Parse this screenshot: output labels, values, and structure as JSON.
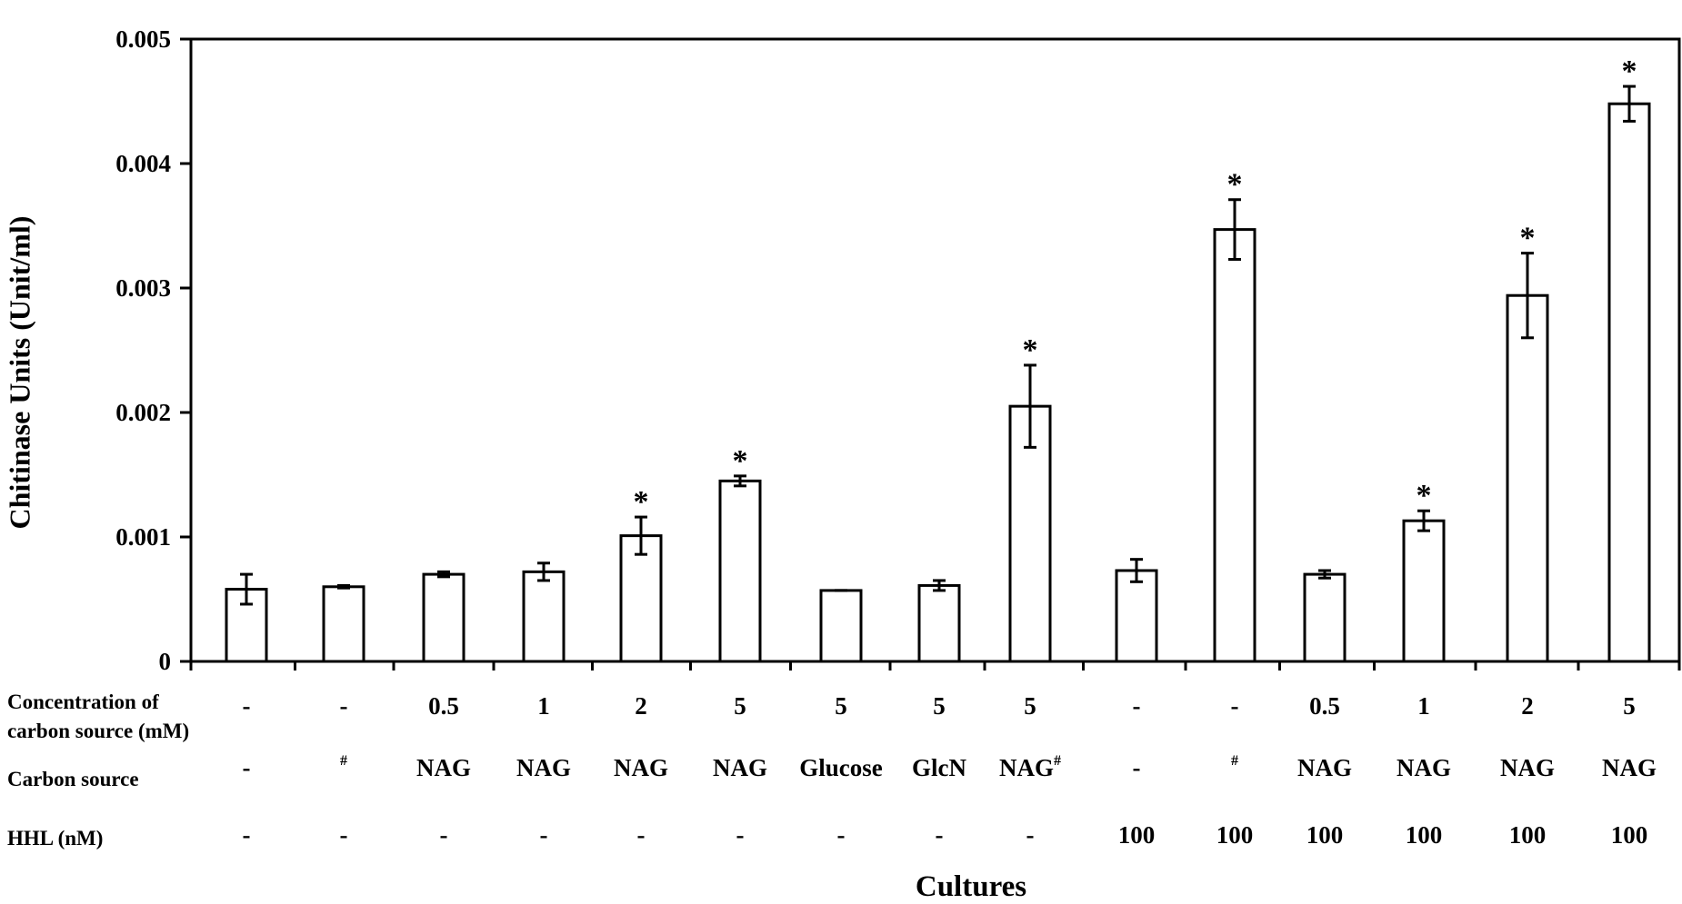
{
  "chart_data": {
    "type": "bar",
    "ylabel": "Chitinase Units (Unit/ml)",
    "xlabel": "Cultures",
    "ylim": [
      0,
      0.005
    ],
    "yticks": [
      "0",
      "0.001",
      "0.002",
      "0.003",
      "0.004",
      "0.005"
    ],
    "grid": false,
    "legend": "none",
    "bar_fill": "#ffffff",
    "bar_stroke": "#000000",
    "values": [
      0.00058,
      0.0006,
      0.0007,
      0.00072,
      0.00101,
      0.00145,
      0.00057,
      0.00061,
      0.00205,
      0.00073,
      0.00347,
      0.0007,
      0.00113,
      0.00294,
      0.00448
    ],
    "errors": [
      0.00012,
      1e-05,
      2e-05,
      7e-05,
      0.00015,
      4e-05,
      0.0,
      4e-05,
      0.00033,
      9e-05,
      0.00024,
      3e-05,
      8e-05,
      0.00034,
      0.00014
    ],
    "significant": [
      "",
      "",
      "",
      "",
      "*",
      "*",
      "",
      "",
      "*",
      "",
      "*",
      "",
      "*",
      "*",
      "*"
    ],
    "table": {
      "rows": [
        {
          "label_lines": [
            "Concentration  of",
            "carbon  source (mM)"
          ],
          "cells": [
            {
              "text": "-",
              "sup": ""
            },
            {
              "text": "-",
              "sup": ""
            },
            {
              "text": "0.5",
              "sup": ""
            },
            {
              "text": "1",
              "sup": ""
            },
            {
              "text": "2",
              "sup": ""
            },
            {
              "text": "5",
              "sup": ""
            },
            {
              "text": "5",
              "sup": ""
            },
            {
              "text": "5",
              "sup": ""
            },
            {
              "text": "5",
              "sup": ""
            },
            {
              "text": "-",
              "sup": ""
            },
            {
              "text": "-",
              "sup": ""
            },
            {
              "text": "0.5",
              "sup": ""
            },
            {
              "text": "1",
              "sup": ""
            },
            {
              "text": "2",
              "sup": ""
            },
            {
              "text": "5",
              "sup": ""
            }
          ]
        },
        {
          "label_lines": [
            "Carbon  source"
          ],
          "cells": [
            {
              "text": "-",
              "sup": ""
            },
            {
              "text": "",
              "sup": "#"
            },
            {
              "text": "NAG",
              "sup": ""
            },
            {
              "text": "NAG",
              "sup": ""
            },
            {
              "text": "NAG",
              "sup": ""
            },
            {
              "text": "NAG",
              "sup": ""
            },
            {
              "text": "Glucose",
              "sup": ""
            },
            {
              "text": "GlcN",
              "sup": ""
            },
            {
              "text": "NAG",
              "sup": "#"
            },
            {
              "text": "-",
              "sup": ""
            },
            {
              "text": "",
              "sup": "#"
            },
            {
              "text": "NAG",
              "sup": ""
            },
            {
              "text": "NAG",
              "sup": ""
            },
            {
              "text": "NAG",
              "sup": ""
            },
            {
              "text": "NAG",
              "sup": ""
            }
          ]
        },
        {
          "label_lines": [
            "HHL  (nM)"
          ],
          "cells": [
            {
              "text": "-",
              "sup": ""
            },
            {
              "text": "-",
              "sup": ""
            },
            {
              "text": "-",
              "sup": ""
            },
            {
              "text": "-",
              "sup": ""
            },
            {
              "text": "-",
              "sup": ""
            },
            {
              "text": "-",
              "sup": ""
            },
            {
              "text": "-",
              "sup": ""
            },
            {
              "text": "-",
              "sup": ""
            },
            {
              "text": "-",
              "sup": ""
            },
            {
              "text": "100",
              "sup": ""
            },
            {
              "text": "100",
              "sup": ""
            },
            {
              "text": "100",
              "sup": ""
            },
            {
              "text": "100",
              "sup": ""
            },
            {
              "text": "100",
              "sup": ""
            },
            {
              "text": "100",
              "sup": ""
            }
          ]
        }
      ]
    }
  }
}
